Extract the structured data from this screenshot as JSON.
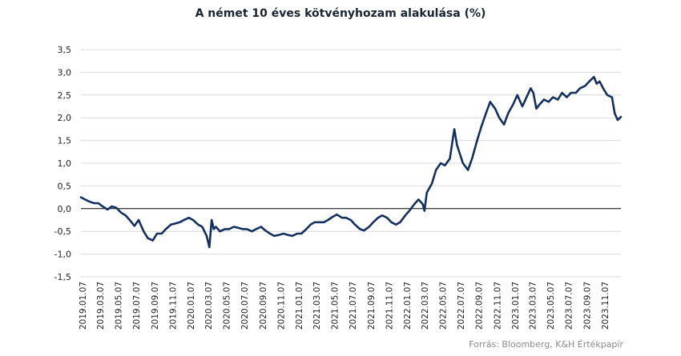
{
  "chart_data": {
    "type": "line",
    "title": "A német 10 éves kötvényhozam alakulása (%)",
    "xlabel": "",
    "ylabel": "",
    "ylim": [
      -1.5,
      3.5
    ],
    "yticks": [
      "3,5",
      "3,0",
      "2,5",
      "2,0",
      "1,5",
      "1,0",
      "0,5",
      "0,0",
      "-0,5",
      "-1,0",
      "-1,5"
    ],
    "xticks": [
      "2019.01.07",
      "2019.03.07",
      "2019.05.07",
      "2019.07.07",
      "2019.09.07",
      "2019.11.07",
      "2020.01.07",
      "2020.03.07",
      "2020.05.07",
      "2020.07.07",
      "2020.09.07",
      "2020.11.07",
      "2021.01.07",
      "2021.03.07",
      "2021.05.07",
      "2021.07.07",
      "2021.09.07",
      "2021.11.07",
      "2022.01.07",
      "2022.03.07",
      "2022.05.07",
      "2022.07.07",
      "2022.09.07",
      "2022.11.07",
      "2023.01.07",
      "2023.03.07",
      "2023.05.07",
      "2023.07.07",
      "2023.09.07",
      "2023.11.07"
    ],
    "grid": "horizontal",
    "line_color": "#13305e",
    "series": [
      {
        "x": [
          "2019-01-01",
          "2019-01-15",
          "2019-02-01",
          "2019-02-15",
          "2019-03-01",
          "2019-03-15",
          "2019-04-01",
          "2019-04-15",
          "2019-05-01",
          "2019-05-15",
          "2019-06-01",
          "2019-06-15",
          "2019-07-01",
          "2019-07-15",
          "2019-08-01",
          "2019-08-15",
          "2019-09-01",
          "2019-09-15",
          "2019-10-01",
          "2019-10-15",
          "2019-11-01",
          "2019-11-15",
          "2019-12-01",
          "2019-12-15",
          "2020-01-01",
          "2020-01-15",
          "2020-02-01",
          "2020-02-15",
          "2020-03-01",
          "2020-03-10",
          "2020-03-18",
          "2020-03-25",
          "2020-04-01",
          "2020-04-15",
          "2020-05-01",
          "2020-05-15",
          "2020-06-01",
          "2020-06-15",
          "2020-07-01",
          "2020-07-15",
          "2020-08-01",
          "2020-08-15",
          "2020-09-01",
          "2020-09-15",
          "2020-10-01",
          "2020-10-15",
          "2020-11-01",
          "2020-11-15",
          "2020-12-01",
          "2020-12-15",
          "2021-01-01",
          "2021-01-15",
          "2021-02-01",
          "2021-02-15",
          "2021-03-01",
          "2021-03-15",
          "2021-04-01",
          "2021-04-15",
          "2021-05-01",
          "2021-05-15",
          "2021-06-01",
          "2021-06-15",
          "2021-07-01",
          "2021-07-15",
          "2021-08-01",
          "2021-08-15",
          "2021-09-01",
          "2021-09-15",
          "2021-10-01",
          "2021-10-15",
          "2021-11-01",
          "2021-11-15",
          "2021-12-01",
          "2021-12-15",
          "2022-01-01",
          "2022-01-15",
          "2022-02-01",
          "2022-02-15",
          "2022-03-01",
          "2022-03-07",
          "2022-03-15",
          "2022-04-01",
          "2022-04-15",
          "2022-05-01",
          "2022-05-15",
          "2022-06-01",
          "2022-06-10",
          "2022-06-16",
          "2022-06-25",
          "2022-07-05",
          "2022-07-15",
          "2022-08-01",
          "2022-08-15",
          "2022-09-01",
          "2022-09-15",
          "2022-10-01",
          "2022-10-15",
          "2022-11-01",
          "2022-11-15",
          "2022-12-01",
          "2022-12-15",
          "2023-01-01",
          "2023-01-15",
          "2023-02-01",
          "2023-02-15",
          "2023-03-01",
          "2023-03-10",
          "2023-03-20",
          "2023-04-01",
          "2023-04-15",
          "2023-05-01",
          "2023-05-15",
          "2023-06-01",
          "2023-06-15",
          "2023-07-01",
          "2023-07-15",
          "2023-08-01",
          "2023-08-15",
          "2023-09-01",
          "2023-09-15",
          "2023-10-01",
          "2023-10-10",
          "2023-10-20",
          "2023-11-01",
          "2023-11-15",
          "2023-12-01",
          "2023-12-10",
          "2023-12-20",
          "2023-12-31"
        ],
        "y": [
          0.25,
          0.2,
          0.15,
          0.12,
          0.12,
          0.05,
          -0.02,
          0.05,
          0.02,
          -0.08,
          -0.15,
          -0.25,
          -0.38,
          -0.25,
          -0.5,
          -0.65,
          -0.7,
          -0.55,
          -0.55,
          -0.45,
          -0.35,
          -0.33,
          -0.3,
          -0.25,
          -0.2,
          -0.25,
          -0.35,
          -0.4,
          -0.6,
          -0.85,
          -0.25,
          -0.45,
          -0.4,
          -0.5,
          -0.45,
          -0.45,
          -0.4,
          -0.42,
          -0.45,
          -0.45,
          -0.5,
          -0.45,
          -0.4,
          -0.48,
          -0.55,
          -0.6,
          -0.58,
          -0.55,
          -0.58,
          -0.6,
          -0.55,
          -0.55,
          -0.45,
          -0.35,
          -0.3,
          -0.3,
          -0.3,
          -0.25,
          -0.18,
          -0.13,
          -0.2,
          -0.2,
          -0.25,
          -0.35,
          -0.45,
          -0.48,
          -0.4,
          -0.3,
          -0.2,
          -0.15,
          -0.2,
          -0.3,
          -0.35,
          -0.3,
          -0.15,
          -0.05,
          0.1,
          0.2,
          0.1,
          -0.05,
          0.35,
          0.55,
          0.85,
          1.0,
          0.95,
          1.1,
          1.5,
          1.75,
          1.4,
          1.2,
          1.0,
          0.85,
          1.1,
          1.5,
          1.8,
          2.1,
          2.35,
          2.2,
          2.0,
          1.85,
          2.1,
          2.3,
          2.5,
          2.25,
          2.45,
          2.65,
          2.55,
          2.2,
          2.3,
          2.4,
          2.35,
          2.45,
          2.4,
          2.55,
          2.45,
          2.55,
          2.55,
          2.65,
          2.7,
          2.8,
          2.9,
          2.75,
          2.8,
          2.65,
          2.5,
          2.45,
          2.1,
          1.95,
          2.02
        ]
      }
    ]
  },
  "source_note": "Forrás: Bloomberg, K&H Értékpapír"
}
